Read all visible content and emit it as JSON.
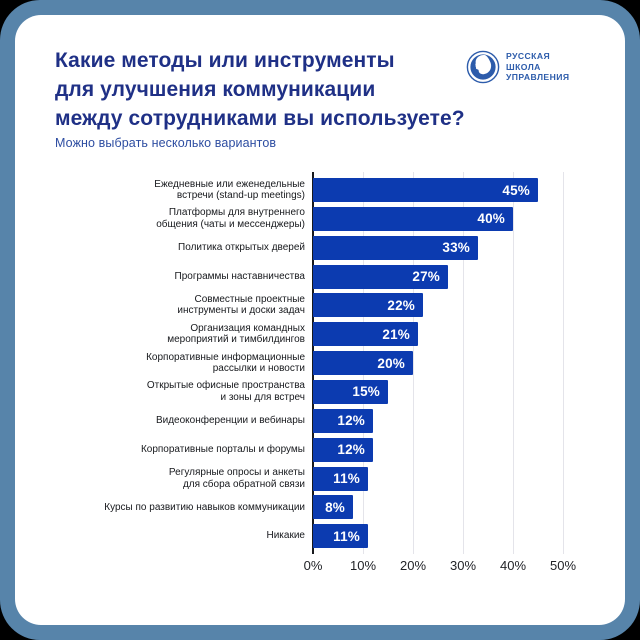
{
  "frame": {
    "border_color": "#5784aa",
    "card_color": "#ffffff",
    "outer_background": "#000000"
  },
  "header": {
    "title_lines": [
      "Какие методы или инструменты",
      "для улучшения коммуникации",
      "между сотрудниками вы используете?"
    ],
    "title_color": "#1f3086",
    "subtitle": "Можно выбрать несколько вариантов",
    "subtitle_color": "#2d4da1"
  },
  "logo": {
    "name": "russian-school-of-management-logo",
    "text_lines": [
      "РУССКАЯ",
      "ШКОЛА",
      "УПРАВЛЕНИЯ"
    ],
    "color": "#2d5cab"
  },
  "chart_data": {
    "type": "bar",
    "orientation": "horizontal",
    "title": "Какие методы или инструменты для улучшения коммуникации между сотрудниками вы используете?",
    "subtitle": "Можно выбрать несколько вариантов",
    "categories": [
      "Ежедневные или еженедельные встречи (stand-up meetings)",
      "Платформы для внутреннего общения (чаты и мессенджеры)",
      "Политика открытых дверей",
      "Программы наставничества",
      "Совместные проектные инструменты и доски задач",
      "Организация командных мероприятий и тимбилдингов",
      "Корпоративные информационные рассылки и новости",
      "Открытые офисные пространства и зоны для встреч",
      "Видеоконференции и вебинары",
      "Корпоративные порталы и форумы",
      "Регулярные опросы и анкеты для сбора обратной связи",
      "Курсы по развитию навыков коммуникации",
      "Никакие"
    ],
    "category_label_lines": [
      [
        "Ежедневные или еженедельные",
        "встречи (stand-up meetings)"
      ],
      [
        "Платформы для внутреннего",
        "общения (чаты и мессенджеры)"
      ],
      [
        "Политика открытых дверей"
      ],
      [
        "Программы наставничества"
      ],
      [
        "Совместные проектные",
        "инструменты и доски задач"
      ],
      [
        "Организация командных",
        "мероприятий и тимбилдингов"
      ],
      [
        "Корпоративные информационные",
        "рассылки и новости"
      ],
      [
        "Открытые офисные пространства",
        "и зоны для встреч"
      ],
      [
        "Видеоконференции и вебинары"
      ],
      [
        "Корпоративные порталы и форумы"
      ],
      [
        "Регулярные опросы и анкеты",
        "для сбора обратной связи"
      ],
      [
        "Курсы по развитию навыков коммуникации"
      ],
      [
        "Никакие"
      ]
    ],
    "values": [
      45,
      40,
      33,
      27,
      22,
      21,
      20,
      15,
      12,
      12,
      11,
      8,
      11
    ],
    "value_labels": [
      "45%",
      "40%",
      "33%",
      "27%",
      "22%",
      "21%",
      "20%",
      "15%",
      "12%",
      "12%",
      "11%",
      "8%",
      "11%"
    ],
    "xlim": [
      0,
      50
    ],
    "x_ticks": [
      "0%",
      "10%",
      "20%",
      "30%",
      "40%",
      "50%"
    ],
    "grid": true,
    "legend": false,
    "bar_color": "#0c3bb0",
    "value_label_color": "#ffffff",
    "gridline_color": "#e4e4ea",
    "axis_line_color": "#17191d"
  }
}
